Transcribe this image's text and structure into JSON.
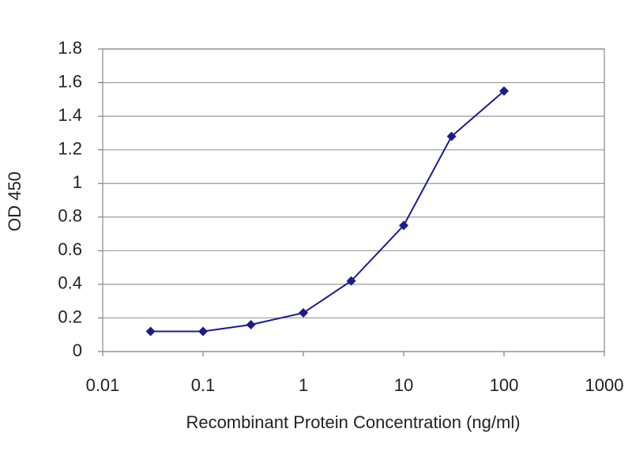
{
  "chart_data": {
    "type": "line",
    "x_label": "Recombinant Protein Concentration (ng/ml)",
    "y_label": "OD 450",
    "xscale": "log",
    "x": [
      0.03,
      0.1,
      0.3,
      1,
      3,
      10,
      30,
      100
    ],
    "series": [
      {
        "color": "#1c1c8a",
        "values": [
          0.12,
          0.12,
          0.16,
          0.23,
          0.42,
          0.75,
          1.28,
          1.55
        ]
      }
    ],
    "xlim": [
      0.01,
      1000
    ],
    "xticks": [
      0.01,
      0.1,
      1,
      10,
      100,
      1000
    ],
    "ylim": [
      0,
      1.8
    ],
    "yticks": [
      0,
      0.2,
      0.4,
      0.6,
      0.8,
      1,
      1.2,
      1.4,
      1.6,
      1.8
    ],
    "grid": true
  }
}
